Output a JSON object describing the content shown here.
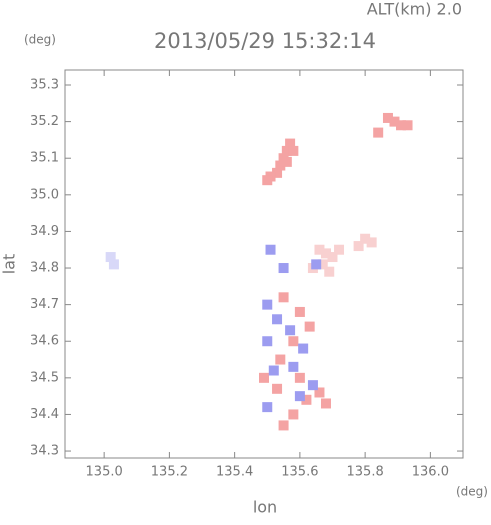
{
  "chart_data": {
    "type": "scatter",
    "title": "2013/05/29 15:32:14",
    "subtitle": "ALT(km) 2.0",
    "x_label": "lon",
    "y_label": "lat",
    "x_unit": "(deg)",
    "y_unit": "(deg)",
    "xlim": [
      134.88,
      136.1
    ],
    "ylim": [
      34.281,
      35.341
    ],
    "xticks": [
      {
        "value": 135,
        "label": "135.0"
      },
      135.2,
      135.4,
      135.6,
      135.8,
      {
        "value": 136,
        "label": "136.0"
      }
    ],
    "yticks": [
      34.3,
      34.4,
      34.5,
      34.6,
      34.7,
      34.8,
      34.9,
      {
        "value": 35,
        "label": "35.0"
      },
      35.1,
      35.2,
      35.3
    ],
    "series": [
      {
        "color": "#f4a3a3",
        "x": [
          135.57,
          135.56,
          135.55,
          135.54,
          135.53,
          135.51,
          135.5,
          135.58,
          135.56,
          135.87,
          135.89,
          135.91,
          135.93,
          135.84,
          135.55,
          135.6,
          135.63,
          135.58,
          135.54,
          135.6,
          135.66,
          135.53,
          135.62,
          135.68,
          135.55,
          135.49,
          135.58
        ],
        "y": [
          35.14,
          35.12,
          35.1,
          35.08,
          35.06,
          35.05,
          35.04,
          35.12,
          35.09,
          35.21,
          35.2,
          35.19,
          35.19,
          35.17,
          34.72,
          34.68,
          34.64,
          34.6,
          34.55,
          34.5,
          34.46,
          34.47,
          34.44,
          34.43,
          34.37,
          34.5,
          34.4
        ]
      },
      {
        "color": "#f8d0d0",
        "x": [
          135.66,
          135.68,
          135.7,
          135.67,
          135.72,
          135.64,
          135.69,
          135.8,
          135.82,
          135.78
        ],
        "y": [
          34.85,
          34.84,
          34.83,
          34.81,
          34.85,
          34.8,
          34.79,
          34.88,
          34.87,
          34.86
        ]
      },
      {
        "color": "#9c9cf0",
        "x": [
          135.5,
          135.53,
          135.57,
          135.5,
          135.61,
          135.52,
          135.58,
          135.64,
          135.5,
          135.6,
          135.51,
          135.55,
          135.65
        ],
        "y": [
          34.7,
          34.66,
          34.63,
          34.6,
          34.58,
          34.52,
          34.53,
          34.48,
          34.42,
          34.45,
          34.85,
          34.8,
          34.81
        ]
      },
      {
        "color": "#d8d8f8",
        "x": [
          135.02,
          135.03
        ],
        "y": [
          34.83,
          34.81
        ]
      }
    ]
  }
}
